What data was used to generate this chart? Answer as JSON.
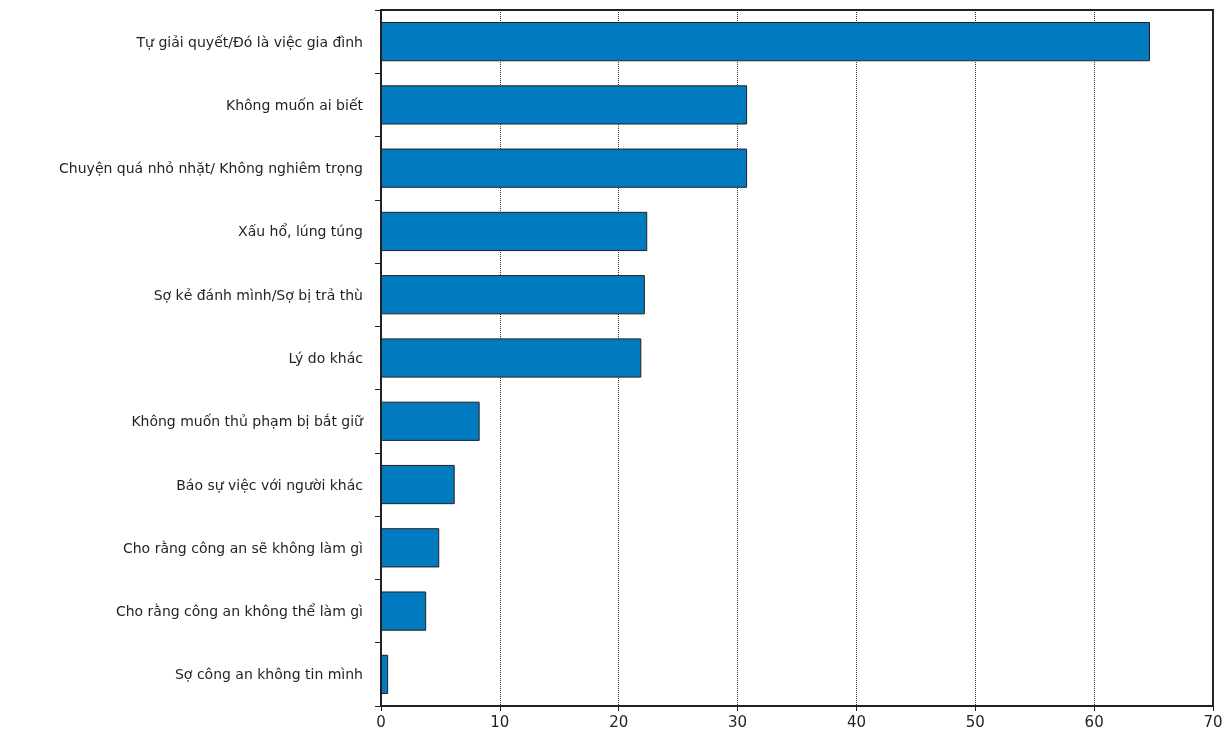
{
  "chart_data": {
    "type": "bar",
    "orientation": "horizontal",
    "categories": [
      "Tự giải quyết/Đó là việc gia đình",
      "Không muốn ai biết",
      "Chuyện quá nhỏ nhặt/ Không nghiêm trọng",
      "Xấu hổ, lúng túng",
      "Sợ kẻ đánh mình/Sợ bị trả thù",
      "Lý do khác",
      "Không muốn thủ phạm bị bắt giữ",
      "Báo sự việc với người khác",
      "Cho rằng công an sẽ không làm gì",
      "Cho rằng công an không thể làm gì",
      "Sợ công an không tin mình"
    ],
    "values": [
      64.7,
      30.8,
      30.8,
      22.4,
      22.2,
      21.9,
      8.3,
      6.2,
      4.9,
      3.8,
      0.6
    ],
    "color": "#007bc0",
    "xlim": [
      0,
      70
    ],
    "xticks": [
      0,
      10,
      20,
      30,
      40,
      50,
      60,
      70
    ],
    "grid": "x"
  }
}
